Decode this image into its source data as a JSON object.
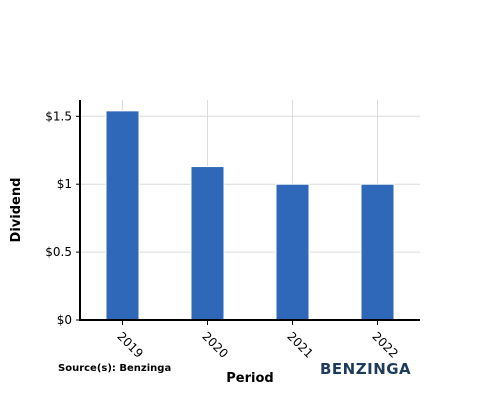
{
  "chart_data": {
    "type": "bar",
    "categories": [
      "2019",
      "2020",
      "2021",
      "2022"
    ],
    "values": [
      1.54,
      1.13,
      1.0,
      1.0
    ],
    "xlabel": "Period",
    "ylabel": "Dividend",
    "ylim": [
      0,
      1.62
    ],
    "yticks": [
      0,
      0.5,
      1,
      1.5
    ],
    "ytick_labels": [
      "$0",
      "$0.5",
      "$1",
      "$1.5"
    ],
    "grid": true,
    "bar_color": "#2f67b9"
  },
  "footer": {
    "source": "Source(s): Benzinga",
    "brand": "BENZINGA"
  }
}
